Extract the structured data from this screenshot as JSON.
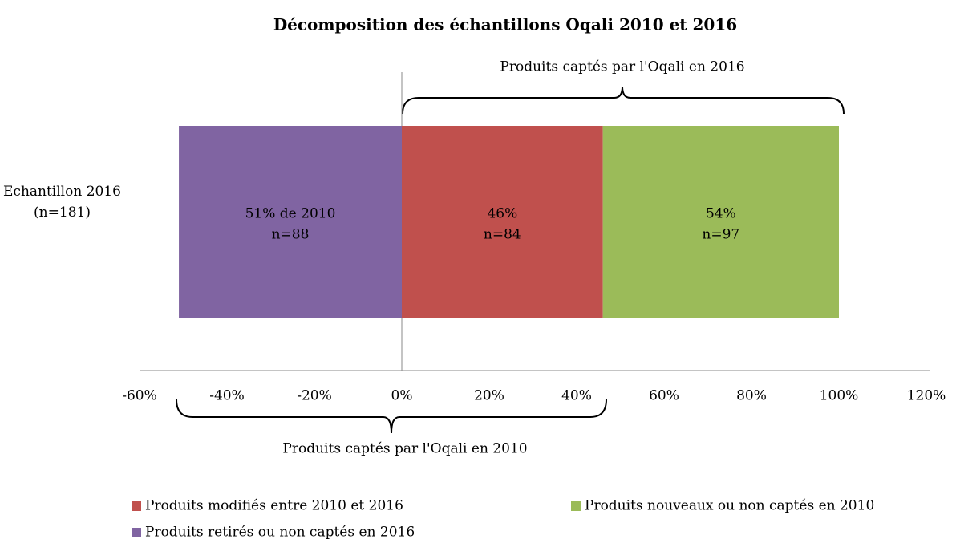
{
  "chart_data": {
    "type": "stacked-barh",
    "title": "Décomposition des échantillons Oqali 2010 et 2016",
    "categories": [
      "Echantillon 2016 (n=181)"
    ],
    "series": [
      {
        "name": "Produits modifiés entre 2010 et 2016",
        "color": "#c0504d",
        "values": [
          46
        ],
        "value_labels": [
          "46%"
        ],
        "count_labels": [
          "n=84"
        ]
      },
      {
        "name": "Produits nouveaux ou non captés en 2010",
        "color": "#9bbb59",
        "values": [
          54
        ],
        "value_labels": [
          "54%"
        ],
        "count_labels": [
          "n=97"
        ]
      },
      {
        "name": "Produits retirés ou non captés en 2016",
        "color": "#8064a2",
        "values": [
          -51
        ],
        "value_labels": [
          "51% de 2010"
        ],
        "count_labels": [
          "n=88"
        ]
      }
    ],
    "xlim": [
      -60,
      120
    ],
    "xticks": [
      {
        "value": -60,
        "label": "-60%"
      },
      {
        "value": -40,
        "label": "-40%"
      },
      {
        "value": -20,
        "label": "-20%"
      },
      {
        "value": 0,
        "label": "0%"
      },
      {
        "value": 20,
        "label": "20%"
      },
      {
        "value": 40,
        "label": "40%"
      },
      {
        "value": 60,
        "label": "60%"
      },
      {
        "value": 80,
        "label": "80%"
      },
      {
        "value": 100,
        "label": "100%"
      },
      {
        "value": 120,
        "label": "120%"
      }
    ],
    "annotations": [
      "Produits captés par l'Oqali en 2016",
      "Produits captés par l'Oqali en 2010"
    ]
  }
}
